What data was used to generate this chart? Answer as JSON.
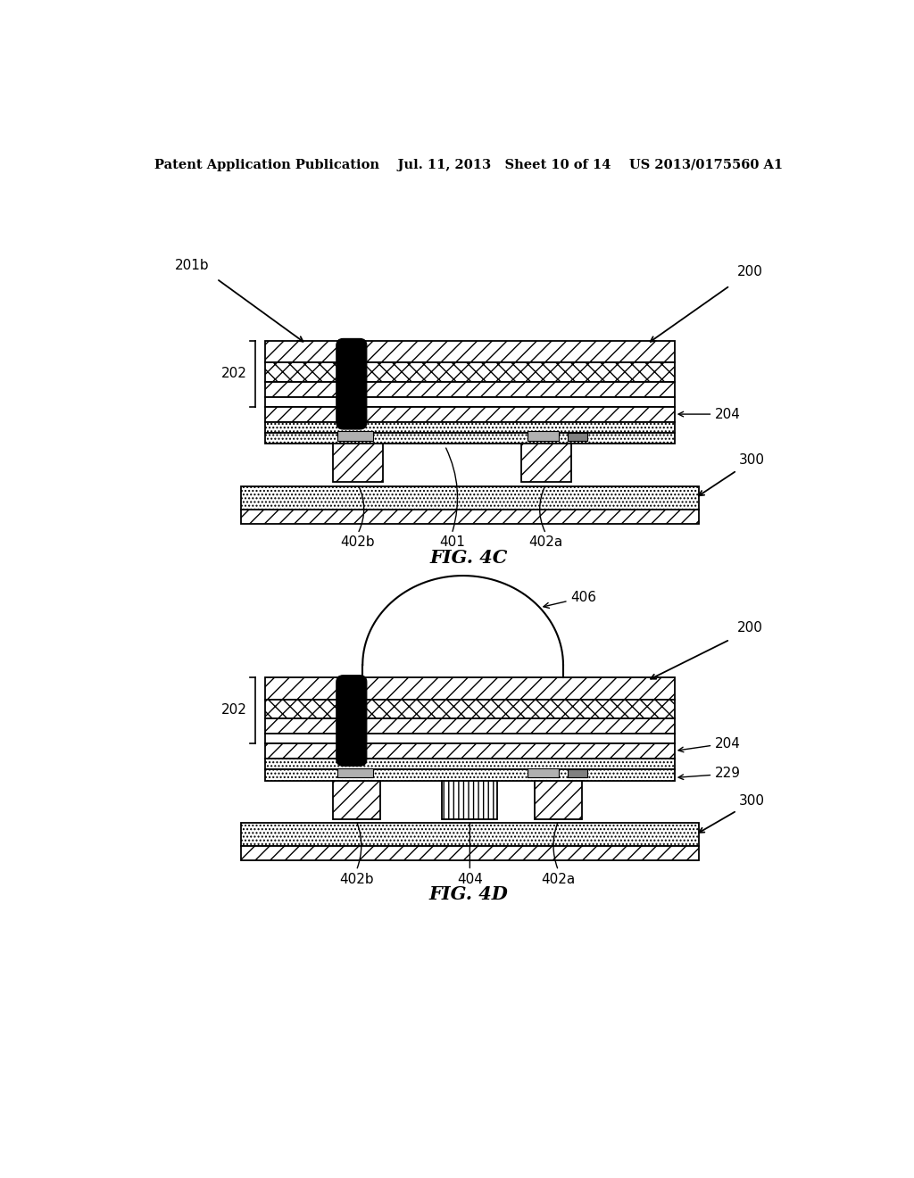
{
  "header": "Patent Application Publication    Jul. 11, 2013   Sheet 10 of 14    US 2013/0175560 A1",
  "fig4c_label": "FIG. 4C",
  "fig4d_label": "FIG. 4D",
  "bg_color": "#ffffff",
  "lc": "#000000"
}
